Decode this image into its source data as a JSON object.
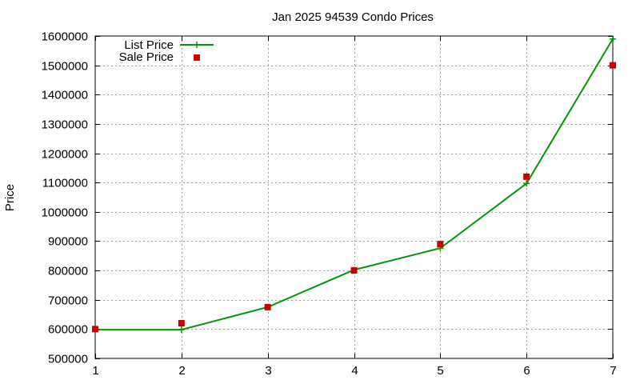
{
  "chart_data": {
    "type": "line",
    "title": "Jan 2025 94539 Condo Prices",
    "xlabel": "",
    "ylabel": "Price",
    "x": [
      1,
      2,
      3,
      4,
      5,
      6,
      7
    ],
    "xlim": [
      1,
      7
    ],
    "ylim": [
      500000,
      1600000
    ],
    "xticks": [
      1,
      2,
      3,
      4,
      5,
      6,
      7
    ],
    "yticks": [
      500000,
      600000,
      700000,
      800000,
      900000,
      1000000,
      1100000,
      1200000,
      1300000,
      1400000,
      1500000,
      1600000
    ],
    "grid": true,
    "legend_position": "top-left",
    "series": [
      {
        "name": "List Price",
        "kind": "line-with-plus-markers",
        "color": "#009900",
        "values": [
          598000,
          598000,
          675000,
          802000,
          876000,
          1097000,
          1590000
        ]
      },
      {
        "name": "Sale Price",
        "kind": "square-markers",
        "color": "#cc0000",
        "values": [
          600000,
          620000,
          675000,
          800000,
          890000,
          1120000,
          1500000
        ]
      }
    ]
  }
}
